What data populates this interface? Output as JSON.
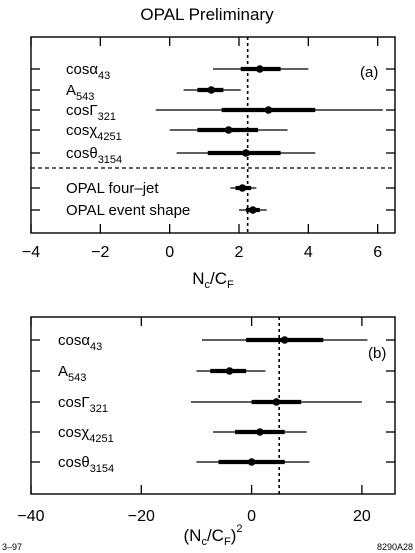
{
  "title": "OPAL Preliminary",
  "footer_left": "3–97",
  "footer_right": "8290A28",
  "chart_data": [
    {
      "id": "a",
      "type": "scatter",
      "panel_label": "(a)",
      "xlabel_main": "N",
      "xlabel_sub1": "c",
      "xlabel_mid": "/C",
      "xlabel_sub2": "F",
      "xlim": [
        -4,
        6.5
      ],
      "xticks": [
        -4,
        -2,
        0,
        2,
        4,
        6
      ],
      "xtick_labels": [
        "−4",
        "−2",
        "0",
        "2",
        "4",
        "6"
      ],
      "reference_line_x": 2.25,
      "rows": [
        {
          "label": "cosα",
          "sub": "43",
          "value": 2.6,
          "inner": [
            2.05,
            3.2
          ],
          "outer": [
            1.25,
            4.0
          ]
        },
        {
          "label": "A",
          "sub": "543",
          "value": 1.2,
          "inner": [
            0.8,
            1.55
          ],
          "outer": [
            0.4,
            2.05
          ]
        },
        {
          "label": "cosΓ",
          "sub": "321",
          "value": 2.85,
          "inner": [
            1.5,
            4.2
          ],
          "outer": [
            -0.4,
            6.15
          ]
        },
        {
          "label": "cosχ",
          "sub": "4251",
          "value": 1.7,
          "inner": [
            0.8,
            2.55
          ],
          "outer": [
            0.0,
            3.4
          ]
        },
        {
          "label": "cosθ",
          "sub": "3154",
          "value": 2.2,
          "inner": [
            1.1,
            3.2
          ],
          "outer": [
            0.2,
            4.2
          ]
        },
        {
          "label": "OPAL four–jet",
          "sub": "",
          "value": 2.1,
          "inner": [
            1.9,
            2.35
          ],
          "outer": [
            1.75,
            2.5
          ]
        },
        {
          "label": "OPAL event shape",
          "sub": "",
          "value": 2.4,
          "inner": [
            2.2,
            2.6
          ],
          "outer": [
            2.0,
            2.8
          ]
        }
      ]
    },
    {
      "id": "b",
      "type": "scatter",
      "panel_label": "(b)",
      "xlabel_main": "(N",
      "xlabel_sub1": "c",
      "xlabel_mid": "/C",
      "xlabel_sub2": "F",
      "xlabel_end": ")",
      "xlabel_sup": "2",
      "xlim": [
        -40,
        26
      ],
      "xticks": [
        -40,
        -20,
        0,
        20
      ],
      "xtick_labels": [
        "−40",
        "−20",
        "0",
        "20"
      ],
      "reference_line_x": 5,
      "rows": [
        {
          "label": "cosα",
          "sub": "43",
          "value": 6,
          "inner": [
            -1,
            13
          ],
          "outer": [
            -9,
            21
          ]
        },
        {
          "label": "A",
          "sub": "543",
          "value": -4,
          "inner": [
            -7.5,
            -1
          ],
          "outer": [
            -10,
            2.5
          ]
        },
        {
          "label": "cosΓ",
          "sub": "321",
          "value": 4.5,
          "inner": [
            0,
            9
          ],
          "outer": [
            -11,
            20
          ]
        },
        {
          "label": "cosχ",
          "sub": "4251",
          "value": 1.5,
          "inner": [
            -3,
            6
          ],
          "outer": [
            -7,
            10
          ]
        },
        {
          "label": "cosθ",
          "sub": "3154",
          "value": 0,
          "inner": [
            -6,
            6
          ],
          "outer": [
            -10,
            10.5
          ]
        }
      ]
    }
  ]
}
